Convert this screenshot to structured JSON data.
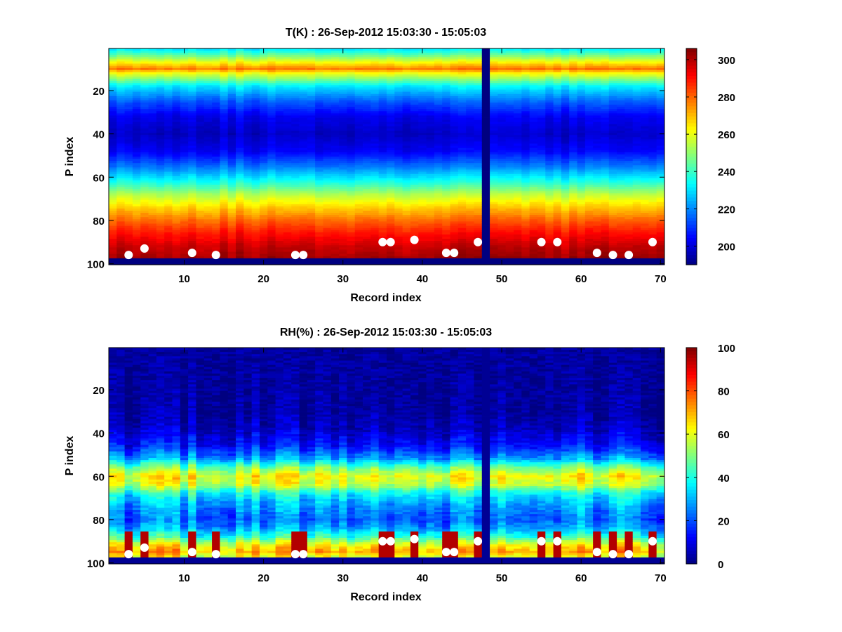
{
  "chart_data": [
    {
      "type": "heatmap",
      "title": "T(K) : 26-Sep-2012 15:03:30 - 15:05:03",
      "xlabel": "Record index",
      "ylabel": "P index",
      "xlim": [
        0.5,
        70.5
      ],
      "ylim": [
        0.5,
        100.5
      ],
      "y_reversed": true,
      "xticks": [
        10,
        20,
        30,
        40,
        50,
        60,
        70
      ],
      "yticks": [
        20,
        40,
        60,
        80,
        100
      ],
      "colormap": "jet",
      "clim": [
        190,
        306
      ],
      "colorbar_ticks": [
        200,
        220,
        240,
        260,
        280,
        300
      ],
      "grid": false,
      "profile": {
        "p_index": [
          1,
          8,
          10,
          12,
          18,
          25,
          32,
          40,
          48,
          55,
          62,
          68,
          74,
          80,
          86,
          92,
          97,
          98
        ],
        "value": [
          232,
          268,
          278,
          262,
          232,
          215,
          203,
          198,
          204,
          218,
          236,
          254,
          268,
          280,
          290,
          298,
          302,
          190
        ]
      },
      "missing_record": 48,
      "missing_value": 190,
      "markers": {
        "record": [
          3,
          5,
          11,
          14,
          24,
          25,
          35,
          36,
          39,
          43,
          44,
          47,
          55,
          57,
          62,
          64,
          66,
          69
        ],
        "p_index": [
          96,
          93,
          95,
          96,
          96,
          96,
          90,
          90,
          89,
          95,
          95,
          90,
          90,
          90,
          95,
          96,
          96,
          90
        ],
        "color": "#ffffff"
      }
    },
    {
      "type": "heatmap",
      "title": "RH(%) : 26-Sep-2012 15:03:30 - 15:05:03",
      "xlabel": "Record index",
      "ylabel": "P index",
      "xlim": [
        0.5,
        70.5
      ],
      "ylim": [
        0.5,
        100.5
      ],
      "y_reversed": true,
      "xticks": [
        10,
        20,
        30,
        40,
        50,
        60,
        70
      ],
      "yticks": [
        20,
        40,
        60,
        80,
        100
      ],
      "colormap": "jet",
      "clim": [
        0,
        100
      ],
      "colorbar_ticks": [
        0,
        20,
        40,
        60,
        80,
        100
      ],
      "grid": false,
      "profile": {
        "p_index": [
          1,
          30,
          38,
          46,
          52,
          56,
          60,
          64,
          68,
          72,
          76,
          80,
          84,
          88,
          92,
          95,
          97,
          98
        ],
        "value": [
          3,
          3,
          6,
          14,
          28,
          48,
          62,
          56,
          38,
          30,
          25,
          22,
          28,
          42,
          62,
          70,
          60,
          2
        ]
      },
      "missing_record": 48,
      "missing_value": 2,
      "markers": {
        "record": [
          3,
          5,
          11,
          14,
          24,
          25,
          35,
          36,
          39,
          43,
          44,
          47,
          55,
          57,
          62,
          64,
          66,
          69
        ],
        "p_index": [
          96,
          93,
          95,
          96,
          96,
          96,
          90,
          90,
          89,
          95,
          95,
          90,
          90,
          90,
          95,
          96,
          96,
          90
        ],
        "color": "#ffffff"
      }
    }
  ]
}
